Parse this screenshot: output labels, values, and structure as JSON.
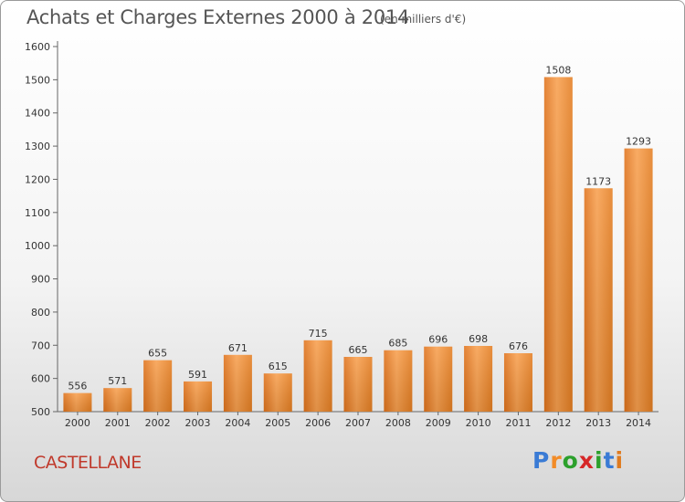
{
  "chart_data": {
    "type": "bar",
    "title": "Achats et Charges Externes 2000 à 2014",
    "subtitle": "(en milliers d'€)",
    "categories": [
      "2000",
      "2001",
      "2002",
      "2003",
      "2004",
      "2005",
      "2006",
      "2007",
      "2008",
      "2009",
      "2010",
      "2011",
      "2012",
      "2013",
      "2014"
    ],
    "values": [
      556,
      571,
      655,
      591,
      671,
      615,
      715,
      665,
      685,
      696,
      698,
      676,
      1508,
      1173,
      1293
    ],
    "ylim": [
      500,
      1600
    ],
    "yticks": [
      500,
      600,
      700,
      800,
      900,
      1000,
      1100,
      1200,
      1300,
      1400,
      1500,
      1600
    ],
    "xlabel": "",
    "ylabel": "",
    "grid": false,
    "bar_color": "#f28c28"
  },
  "footer": {
    "location": "CASTELLANE",
    "logo": {
      "letters": [
        "P",
        "r",
        "o",
        "x",
        "i",
        "t",
        "i"
      ],
      "colors": [
        "#3a7bd5",
        "#f28c28",
        "#2ca02c",
        "#d62728",
        "#2ca02c",
        "#3a7bd5",
        "#e07b1f"
      ]
    }
  }
}
